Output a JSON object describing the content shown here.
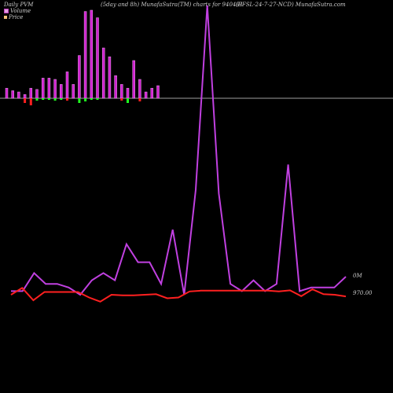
{
  "header": {
    "left": "Daily PVM",
    "mid": "(5day and 8h) MunafaSutra(TM) charts for 940491",
    "right": "(EFSL-24-7-27-NCD) MunafaSutra.com"
  },
  "legend": [
    {
      "label": "Volume",
      "color": "#e6e"
    },
    {
      "label": "Price",
      "color": "#f5c27a"
    }
  ],
  "volume_label": "0M",
  "price_label": "970.00",
  "colors": {
    "volume_line": "#c040e0",
    "price_line": "#ff2020",
    "baseline": "#a0a0a0",
    "bar_up": "#d020d0",
    "bar_down_red": "#ff2020",
    "bar_down_green": "#20ff20"
  },
  "chart_data": [
    {
      "type": "bar",
      "description_series": "volume bars (relative)",
      "bars_up": [
        8,
        6,
        5,
        3,
        8,
        7,
        16,
        16,
        15,
        11,
        21,
        11,
        34,
        69,
        70,
        64,
        40,
        33,
        18,
        11,
        8,
        30,
        15,
        5,
        8,
        10
      ],
      "bars_down": [
        0,
        0,
        0,
        6,
        9,
        3,
        2,
        2,
        3,
        2,
        3,
        0,
        6,
        4,
        2,
        2,
        0,
        0,
        0,
        3,
        6,
        0,
        4,
        0,
        0,
        0
      ],
      "bars_down_color": [
        "r",
        "r",
        "r",
        "r",
        "r",
        "g",
        "g",
        "g",
        "g",
        "g",
        "r",
        "r",
        "g",
        "g",
        "g",
        "g",
        "g",
        "g",
        "g",
        "r",
        "g",
        "g",
        "r",
        "r",
        "r",
        "r"
      ]
    },
    {
      "type": "line",
      "series": [
        {
          "name": "Volume",
          "values": [
            1,
            1,
            6,
            3,
            3,
            2,
            0,
            4,
            6,
            4,
            14,
            9,
            9,
            3,
            18,
            0,
            29,
            80,
            28,
            3,
            1,
            4,
            1,
            3,
            36,
            1,
            2,
            2,
            2,
            5
          ]
        },
        {
          "name": "Price",
          "values": [
            970.0,
            972.5,
            968.0,
            971.0,
            971.0,
            971.0,
            971.0,
            969.0,
            967.5,
            970.0,
            969.8,
            969.8,
            970.0,
            970.2,
            968.7,
            969.0,
            971.2,
            971.5,
            971.5,
            971.5,
            971.5,
            971.5,
            971.5,
            971.5,
            971.2,
            971.6,
            969.5,
            972.0,
            970.2,
            970.0,
            969.4
          ]
        }
      ],
      "ylabel_right": [
        "0M",
        "970.00"
      ]
    }
  ]
}
